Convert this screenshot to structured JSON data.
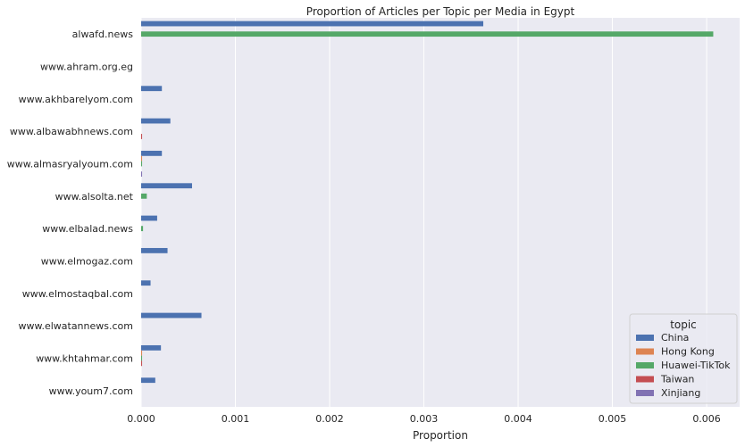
{
  "chart_data": {
    "type": "bar",
    "orientation": "horizontal",
    "title": "Proportion of Articles per Topic per Media in Egypt",
    "xlabel": "Proportion",
    "ylabel": "",
    "xlim": [
      0,
      0.00635
    ],
    "xticks": [
      "0.000",
      "0.001",
      "0.002",
      "0.003",
      "0.004",
      "0.005",
      "0.006"
    ],
    "grid": true,
    "legend_title": "topic",
    "legend_position": "bottom-right",
    "categories": [
      "alwafd.news",
      "www.ahram.org.eg",
      "www.akhbarelyom.com",
      "www.albawabhnews.com",
      "www.almasryalyoum.com",
      "www.alsolta.net",
      "www.elbalad.news",
      "www.elmogaz.com",
      "www.elmostaqbal.com",
      "www.elwatannews.com",
      "www.khtahmar.com",
      "www.youm7.com"
    ],
    "series": [
      {
        "name": "China",
        "color": "#4c72b0",
        "values": [
          0.00363,
          0.0,
          0.00022,
          0.00031,
          0.00022,
          0.00054,
          0.00017,
          0.00028,
          0.0001,
          0.00064,
          0.00021,
          0.00015
        ]
      },
      {
        "name": "Hong Kong",
        "color": "#dd8452",
        "values": [
          0,
          0,
          0,
          0,
          1e-05,
          0,
          0,
          0,
          0,
          0,
          1e-05,
          0
        ]
      },
      {
        "name": "Huawei-TikTok",
        "color": "#55a868",
        "values": [
          0.00607,
          0,
          0,
          0,
          1e-05,
          6e-05,
          2e-05,
          0,
          0,
          0,
          1e-05,
          0
        ]
      },
      {
        "name": "Taiwan",
        "color": "#c44e52",
        "values": [
          0,
          0,
          0,
          1e-05,
          0,
          0,
          0,
          0,
          0,
          0,
          1e-05,
          0
        ]
      },
      {
        "name": "Xinjiang",
        "color": "#8172b3",
        "values": [
          0,
          0,
          0,
          0,
          1e-05,
          0,
          0,
          0,
          0,
          0,
          0,
          0
        ]
      }
    ]
  }
}
